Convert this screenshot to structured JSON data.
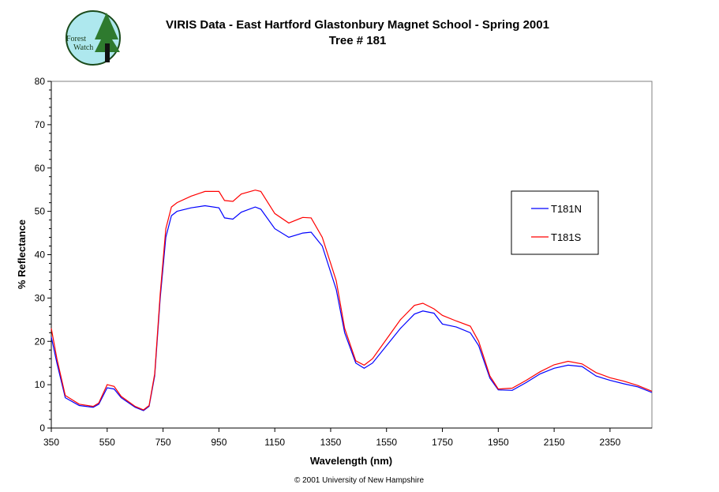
{
  "logo": {
    "text": "Forest Watch"
  },
  "footer": "© 2001 University of New Hampshire",
  "colors": {
    "T181N": "#0000ff",
    "T181S": "#ff0000"
  },
  "chart_data": {
    "type": "line",
    "title": "VIRIS Data - East Hartford Glastonbury Magnet School - Spring 2001",
    "subtitle": "Tree # 181",
    "xlabel": "Wavelength (nm)",
    "ylabel": "% Reflectance",
    "xlim": [
      350,
      2500
    ],
    "ylim": [
      0,
      80
    ],
    "xticks": [
      350,
      550,
      750,
      950,
      1150,
      1350,
      1550,
      1750,
      1950,
      2150,
      2350
    ],
    "yticks": [
      0,
      10,
      20,
      30,
      40,
      50,
      60,
      70,
      80
    ],
    "grid": false,
    "legend_position": "right",
    "x": [
      350,
      370,
      400,
      450,
      500,
      520,
      550,
      575,
      600,
      650,
      680,
      700,
      720,
      740,
      760,
      780,
      800,
      850,
      900,
      950,
      970,
      1000,
      1030,
      1080,
      1100,
      1150,
      1200,
      1250,
      1280,
      1320,
      1370,
      1400,
      1440,
      1470,
      1500,
      1550,
      1600,
      1650,
      1680,
      1720,
      1750,
      1800,
      1850,
      1880,
      1920,
      1950,
      2000,
      2050,
      2100,
      2150,
      2200,
      2250,
      2300,
      2350,
      2400,
      2450,
      2500
    ],
    "series": [
      {
        "name": "T181N",
        "values": [
          21,
          15,
          7,
          5.2,
          4.8,
          5.5,
          9.3,
          9,
          7,
          4.8,
          4,
          5,
          12,
          30,
          44,
          49,
          50,
          50.8,
          51.3,
          50.8,
          48.5,
          48.2,
          49.8,
          51,
          50.5,
          46,
          44,
          45,
          45.2,
          42,
          32,
          22,
          15,
          13.8,
          15,
          19,
          23,
          26.3,
          27,
          26.5,
          24,
          23.3,
          22,
          19,
          11.5,
          8.8,
          8.7,
          10.5,
          12.5,
          13.8,
          14.5,
          14.2,
          12,
          11,
          10.2,
          9.5,
          8.2
        ]
      },
      {
        "name": "T181S",
        "values": [
          23,
          16,
          7.5,
          5.5,
          5,
          5.8,
          10,
          9.6,
          7.3,
          5,
          4.2,
          5.2,
          12.5,
          31,
          46,
          51,
          52,
          53.5,
          54.6,
          54.6,
          52.5,
          52.3,
          54,
          54.9,
          54.6,
          49.5,
          47.3,
          48.6,
          48.5,
          44,
          34,
          23,
          15.5,
          14.5,
          16,
          20.5,
          25,
          28.3,
          28.8,
          27.5,
          26,
          24.7,
          23.5,
          20,
          12,
          9,
          9.2,
          11,
          13,
          14.6,
          15.4,
          14.8,
          12.8,
          11.6,
          10.8,
          9.8,
          8.5
        ]
      }
    ]
  }
}
